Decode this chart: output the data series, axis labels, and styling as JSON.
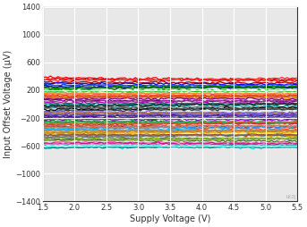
{
  "title": "",
  "xlabel": "Supply Voltage (V)",
  "ylabel": "Input Offset Voltage (μV)",
  "xlim": [
    1.5,
    5.5
  ],
  "ylim": [
    -1400,
    1400
  ],
  "xticks": [
    1.5,
    2.0,
    2.5,
    3.0,
    3.5,
    4.0,
    4.5,
    5.0,
    5.5
  ],
  "yticks": [
    -1400,
    -1000,
    -600,
    -200,
    200,
    600,
    1000,
    1400
  ],
  "background_color": "#ffffff",
  "plot_bg_color": "#e8e8e8",
  "grid_color": "#ffffff",
  "watermark": "LK2J",
  "x_start": 1.5,
  "x_end": 5.5,
  "line_colors": [
    "#ff0000",
    "#cc0000",
    "#ff3333",
    "#aa0000",
    "#0000ff",
    "#0033cc",
    "#3355ff",
    "#000099",
    "#008800",
    "#006600",
    "#00aa00",
    "#33bb33",
    "#ff8c00",
    "#ff6600",
    "#cc6600",
    "#ff9900",
    "#800080",
    "#660066",
    "#993399",
    "#aa00aa",
    "#008080",
    "#006666",
    "#009999",
    "#33aaaa",
    "#000000",
    "#333333",
    "#555555",
    "#222222",
    "#8b4513",
    "#a0522d",
    "#6b3a2a",
    "#c47a45",
    "#4b0082",
    "#6600aa",
    "#8800cc",
    "#5500aa",
    "#006400",
    "#228b22",
    "#2e8b57",
    "#3cb371",
    "#dc143c",
    "#b22222",
    "#cd5c5c",
    "#ff4500",
    "#1e90ff",
    "#4169e1",
    "#00bfff",
    "#5b9bd5",
    "#ffd700",
    "#daa520",
    "#b8860b",
    "#ccaa00",
    "#708090",
    "#696969",
    "#808080",
    "#607080",
    "#9acd32",
    "#6b8e23",
    "#556b2f",
    "#8fbc44",
    "#ff69b4",
    "#ff1493",
    "#c71585",
    "#ee82ee",
    "#40e0d0",
    "#00ced1",
    "#20b2aa",
    "#009090",
    "#ff7f50",
    "#ff6347",
    "#e04020",
    "#cc5533",
    "#7b68ee",
    "#6a5acd",
    "#483d8b",
    "#9370db",
    "#bc8f5f",
    "#d2691e",
    "#cd853f",
    "#a0522d"
  ],
  "line_offsets": [
    380,
    360,
    340,
    320,
    300,
    280,
    260,
    250,
    240,
    220,
    200,
    180,
    160,
    140,
    120,
    100,
    80,
    60,
    40,
    20,
    0,
    -20,
    -40,
    -60,
    -80,
    -100,
    -50,
    -30,
    -120,
    -140,
    -160,
    -130,
    -180,
    -200,
    -220,
    -190,
    -240,
    -260,
    -280,
    -250,
    -300,
    -320,
    -310,
    -330,
    -350,
    -370,
    -360,
    -380,
    -400,
    -420,
    -410,
    -430,
    -450,
    -470,
    -460,
    -480,
    -500,
    -520,
    -510,
    -530,
    -550,
    -570,
    -560,
    -580,
    -600,
    -620,
    -610,
    -630,
    150,
    130,
    110,
    90,
    -110,
    -150,
    -170,
    -210,
    -340,
    -290,
    -390,
    -440
  ],
  "line_width": 0.9
}
